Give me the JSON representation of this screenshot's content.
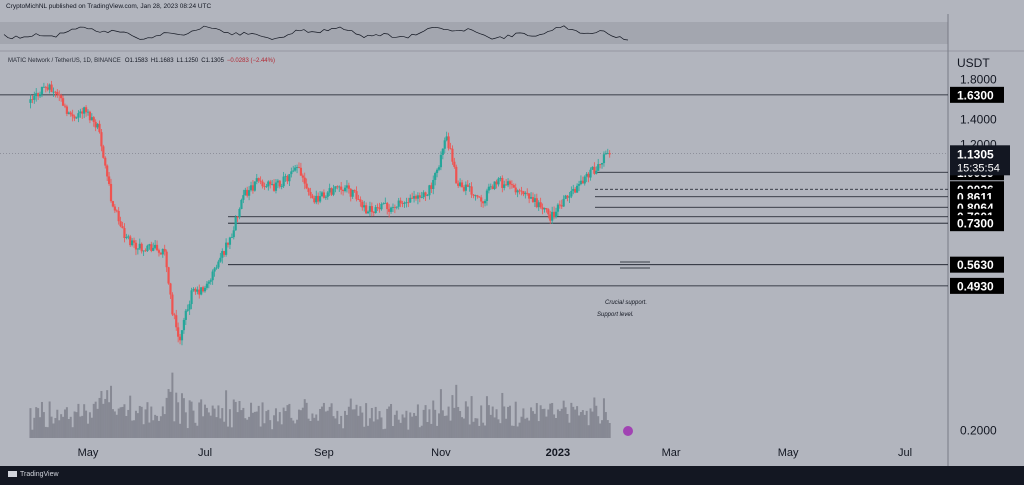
{
  "header": {
    "publisher": "CryptoMichNL published on TradingView.com, Jan 28, 2023 08:24 UTC",
    "symbol": "MATIC Network / TetherUS, 1D, BINANCE",
    "ohlc": {
      "open": "O1.1583",
      "high": "H1.1683",
      "low": "L1.1250",
      "close": "C1.1305",
      "change": "−0.0283 (−2.44%)"
    }
  },
  "footer": {
    "brand": "TradingView"
  },
  "chart_data": {
    "type": "candlestick",
    "currency_label": "USDT",
    "x_ticks": [
      "May",
      "Jul",
      "Sep",
      "Nov",
      "2023",
      "Mar",
      "May",
      "Jul"
    ],
    "y_ticks": [
      "1.8000",
      "1.4000",
      "1.2000",
      "0.2000"
    ],
    "price_range": [
      0.2,
      1.9
    ],
    "current_price": {
      "value": 1.1305,
      "label": "1.1305",
      "countdown": "15:35:54"
    },
    "levels": [
      {
        "value": 1.63,
        "label": "1.6300"
      },
      {
        "value": 1.0039,
        "label": "1.0039"
      },
      {
        "value": 0.9026,
        "label": "0.9026"
      },
      {
        "value": 0.8611,
        "label": "0.8611"
      },
      {
        "value": 0.8064,
        "label": "0.8064"
      },
      {
        "value": 0.7601,
        "label": "0.7601"
      },
      {
        "value": 0.73,
        "label": "0.7300"
      },
      {
        "value": 0.563,
        "label": "0.5630"
      },
      {
        "value": 0.493,
        "label": "0.4930"
      }
    ],
    "annotations": {
      "crucial": "Crucial support.",
      "support": "Support level."
    },
    "close_path": [
      [
        "2022-04-01",
        1.55
      ],
      [
        "2022-04-08",
        1.72
      ],
      [
        "2022-04-15",
        1.65
      ],
      [
        "2022-04-22",
        1.42
      ],
      [
        "2022-04-29",
        1.48
      ],
      [
        "2022-05-06",
        1.35
      ],
      [
        "2022-05-10",
        1.05
      ],
      [
        "2022-05-13",
        0.85
      ],
      [
        "2022-05-20",
        0.67
      ],
      [
        "2022-05-27",
        0.63
      ],
      [
        "2022-06-03",
        0.63
      ],
      [
        "2022-06-10",
        0.6
      ],
      [
        "2022-06-14",
        0.42
      ],
      [
        "2022-06-18",
        0.35
      ],
      [
        "2022-06-24",
        0.47
      ],
      [
        "2022-07-01",
        0.48
      ],
      [
        "2022-07-08",
        0.57
      ],
      [
        "2022-07-15",
        0.68
      ],
      [
        "2022-07-22",
        0.88
      ],
      [
        "2022-07-29",
        0.95
      ],
      [
        "2022-08-05",
        0.91
      ],
      [
        "2022-08-12",
        0.96
      ],
      [
        "2022-08-19",
        1.03
      ],
      [
        "2022-08-26",
        0.85
      ],
      [
        "2022-09-02",
        0.87
      ],
      [
        "2022-09-09",
        0.93
      ],
      [
        "2022-09-16",
        0.88
      ],
      [
        "2022-09-23",
        0.8
      ],
      [
        "2022-09-30",
        0.8
      ],
      [
        "2022-10-07",
        0.81
      ],
      [
        "2022-10-14",
        0.83
      ],
      [
        "2022-10-21",
        0.85
      ],
      [
        "2022-10-28",
        0.93
      ],
      [
        "2022-11-04",
        1.25
      ],
      [
        "2022-11-09",
        0.95
      ],
      [
        "2022-11-16",
        0.9
      ],
      [
        "2022-11-23",
        0.85
      ],
      [
        "2022-11-30",
        0.95
      ],
      [
        "2022-12-07",
        0.92
      ],
      [
        "2022-12-14",
        0.87
      ],
      [
        "2022-12-21",
        0.83
      ],
      [
        "2022-12-28",
        0.76
      ],
      [
        "2023-01-04",
        0.83
      ],
      [
        "2023-01-11",
        0.92
      ],
      [
        "2023-01-18",
        1.01
      ],
      [
        "2023-01-23",
        1.03
      ],
      [
        "2023-01-26",
        1.16
      ],
      [
        "2023-01-28",
        1.1305
      ]
    ]
  }
}
